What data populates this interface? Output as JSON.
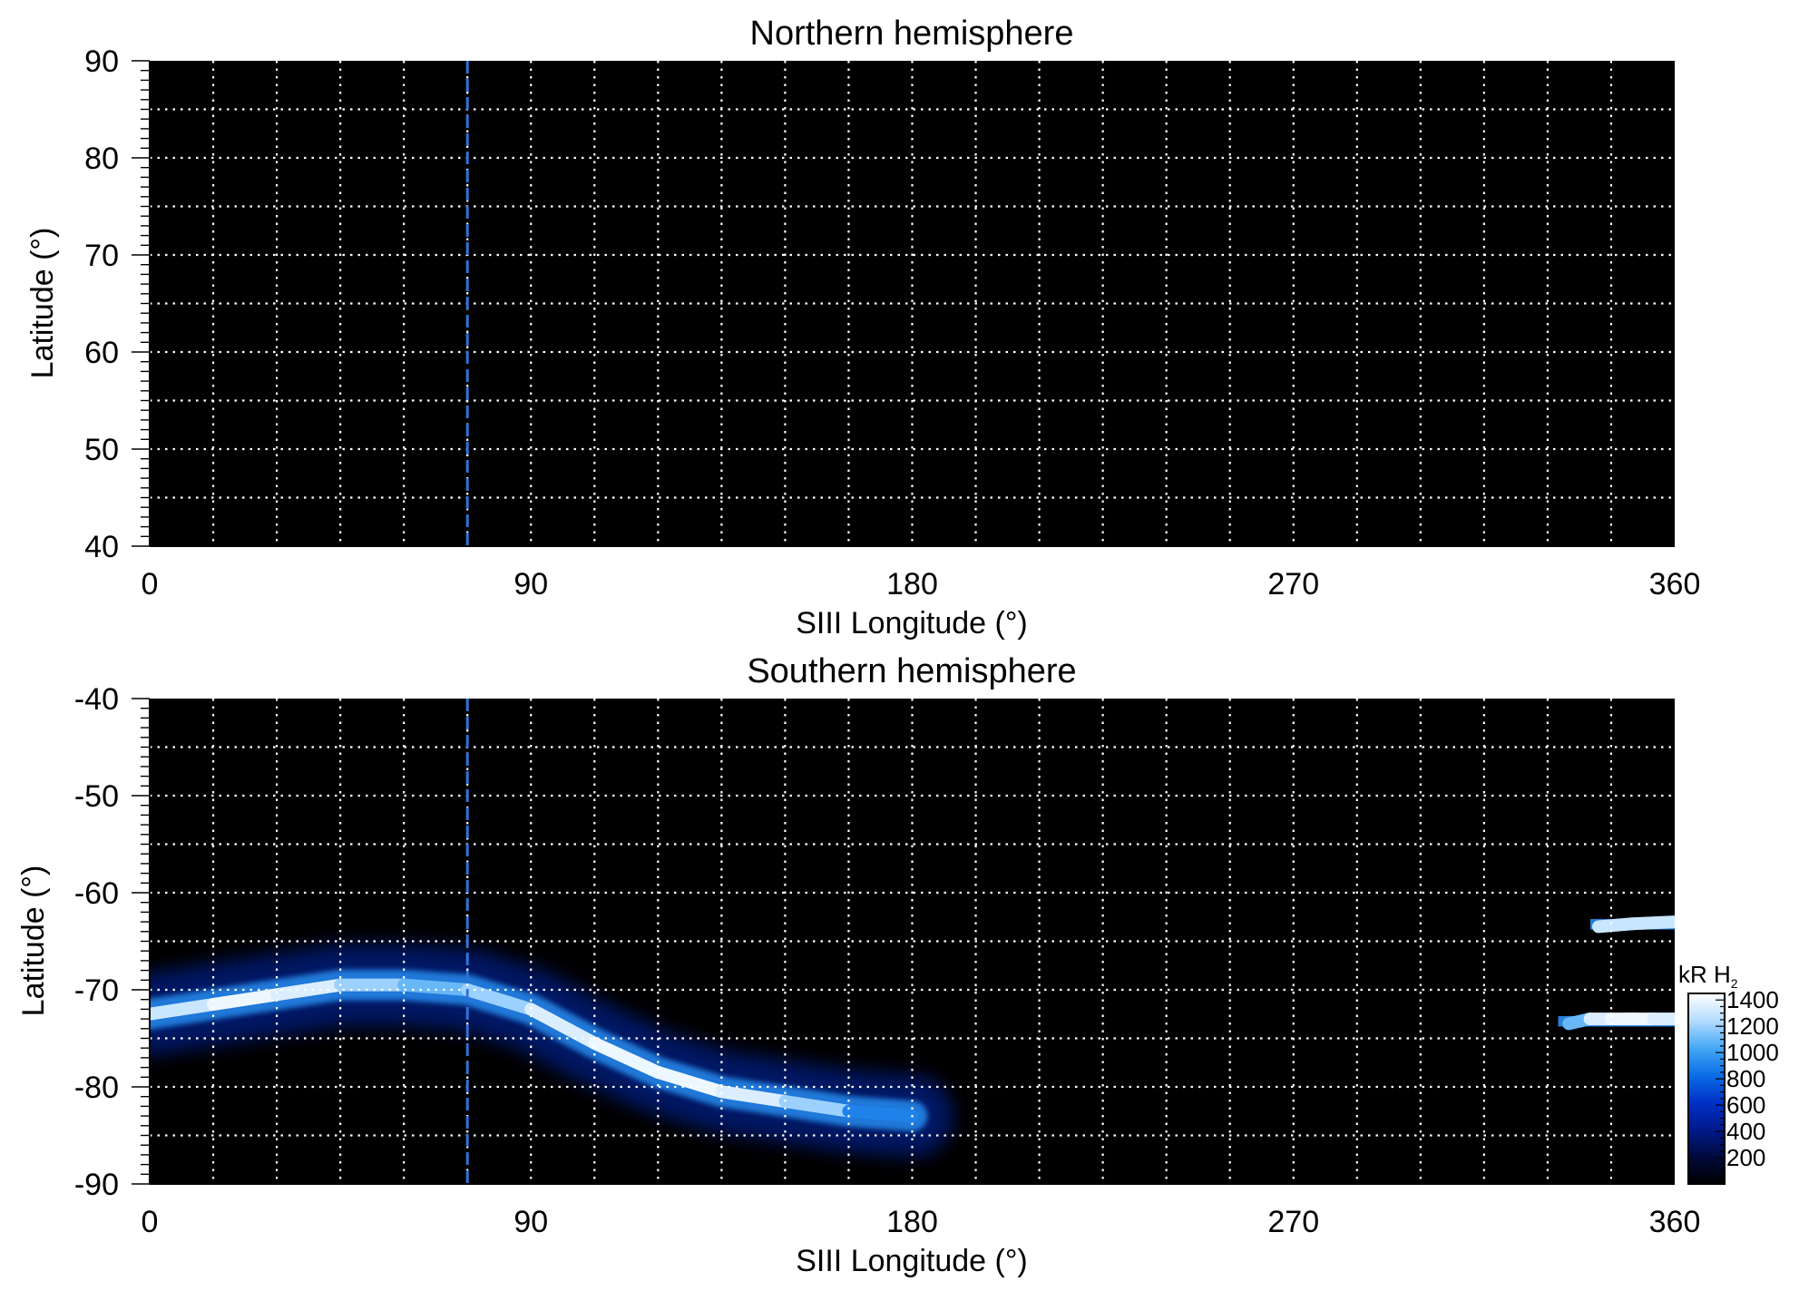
{
  "chart_data": [
    {
      "type": "heatmap",
      "title": "Northern hemisphere",
      "xlabel": "SIII Longitude (°)",
      "ylabel": "Latitude (°)",
      "xlim": [
        0,
        360
      ],
      "ylim": [
        40,
        90
      ],
      "x_ticks": [
        0,
        90,
        180,
        270,
        360
      ],
      "y_ticks": [
        40,
        50,
        60,
        70,
        80,
        90
      ],
      "grid": true,
      "grid_style": "dotted",
      "grid_x_step": 15,
      "grid_y_step": 5,
      "background": "#000000",
      "marker_longitude": 75,
      "emission": []
    },
    {
      "type": "heatmap",
      "title": "Southern hemisphere",
      "xlabel": "SIII Longitude (°)",
      "ylabel": "Latitude (°)",
      "xlim": [
        0,
        360
      ],
      "ylim": [
        -90,
        -40
      ],
      "x_ticks": [
        0,
        90,
        180,
        270,
        360
      ],
      "y_ticks": [
        -90,
        -80,
        -70,
        -60,
        -50,
        -40
      ],
      "grid": true,
      "grid_style": "dotted",
      "grid_x_step": 15,
      "grid_y_step": 5,
      "background": "#000000",
      "marker_longitude": 75,
      "emission": [
        {
          "feature": "main auroral oval",
          "longitude": [
            0,
            15,
            30,
            45,
            60,
            75,
            90,
            105,
            120,
            135,
            150,
            165,
            180
          ],
          "latitude": [
            -72.5,
            -71.5,
            -70.5,
            -69.5,
            -69.5,
            -70,
            -72,
            -75.5,
            -78.5,
            -80.5,
            -81.5,
            -82.5,
            -83
          ],
          "intensity_kR": [
            1200,
            1400,
            1400,
            1300,
            1100,
            1100,
            1300,
            1400,
            1400,
            1400,
            1300,
            1100,
            700
          ]
        },
        {
          "feature": "oval segment near 360",
          "longitude": [
            335,
            340,
            345,
            350,
            355,
            360
          ],
          "latitude": [
            -73.5,
            -73,
            -73,
            -73,
            -73,
            -73
          ],
          "intensity_kR": [
            900,
            1300,
            1400,
            1400,
            1400,
            1300
          ]
        },
        {
          "feature": "high-latitude arc",
          "longitude": [
            342,
            350,
            360
          ],
          "latitude": [
            -63.5,
            -63.2,
            -63
          ],
          "intensity_kR": [
            1200,
            1400,
            1200
          ]
        }
      ]
    }
  ],
  "colorbar": {
    "unit_label": "kR H",
    "unit_subscript": "2",
    "ticks": [
      200,
      400,
      600,
      800,
      1000,
      1200,
      1400
    ],
    "range": [
      0,
      1450
    ],
    "colors": [
      "#000000",
      "#000a3c",
      "#001a8c",
      "#0030c8",
      "#0a6ee6",
      "#46a8f5",
      "#b4dcff",
      "#ffffff"
    ]
  }
}
